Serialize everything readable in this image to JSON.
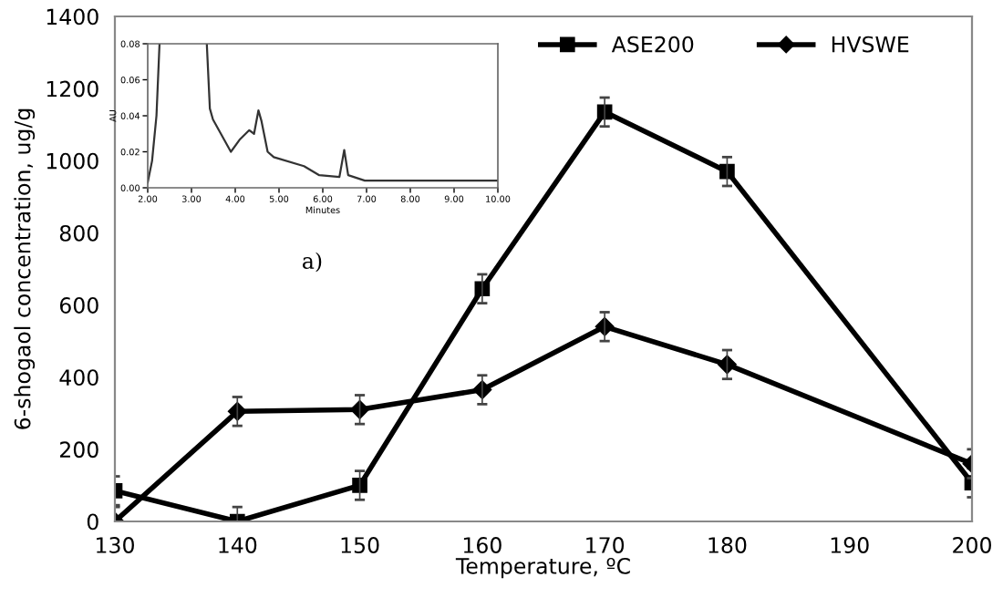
{
  "chart_data": [
    {
      "type": "line",
      "xlabel": "Temperature, ºC",
      "ylabel": "6-shogaol concentration, ug/g",
      "xlim": [
        130,
        200
      ],
      "xticks": [
        130,
        140,
        150,
        160,
        170,
        180,
        190,
        200
      ],
      "ylim": [
        0,
        1400
      ],
      "yticks": [
        0,
        200,
        400,
        600,
        800,
        1000,
        1200,
        1400
      ],
      "grid": false,
      "legend": "top right",
      "line_style": "solid",
      "series": [
        {
          "name": "ASE200",
          "color": "#000000",
          "marker": "square",
          "x": [
            130,
            140,
            150,
            160,
            170,
            180,
            200
          ],
          "values": [
            85,
            0,
            100,
            645,
            1135,
            970,
            107
          ],
          "errors": [
            40,
            40,
            40,
            40,
            40,
            40,
            40
          ]
        },
        {
          "name": "HVSWE",
          "color": "#000000",
          "marker": "diamond",
          "x": [
            130,
            140,
            150,
            160,
            170,
            180,
            200
          ],
          "values": [
            0,
            305,
            310,
            365,
            540,
            435,
            160
          ],
          "errors": [
            40,
            40,
            40,
            40,
            40,
            40,
            40
          ]
        }
      ]
    },
    {
      "type": "line",
      "xlabel": "Minutes",
      "ylabel": "AU",
      "annotations": [
        "a)"
      ],
      "xlim": [
        2,
        10
      ],
      "xticks": [
        {
          "value": 2,
          "label": "2.00"
        },
        {
          "value": 3,
          "label": "3.00"
        },
        {
          "value": 4,
          "label": "4.00"
        },
        {
          "value": 5,
          "label": "5.00"
        },
        {
          "value": 6,
          "label": "6.00"
        },
        {
          "value": 7,
          "label": "7.00"
        },
        {
          "value": 8,
          "label": "8.00"
        },
        {
          "value": 9,
          "label": "9.00"
        },
        {
          "value": 10,
          "label": "10.00"
        }
      ],
      "ylim": [
        0,
        0.08
      ],
      "yticks": [
        {
          "value": 0,
          "label": "0.00"
        },
        {
          "value": 0.02,
          "label": "0.02"
        },
        {
          "value": 0.04,
          "label": "0.04"
        },
        {
          "value": 0.06,
          "label": "0.06"
        },
        {
          "value": 0.08,
          "label": "0.08"
        }
      ],
      "grid": false,
      "legend": false,
      "marker": "none",
      "series": [
        {
          "color": "#333333",
          "x": [
            2.0,
            2.1,
            2.2,
            2.27,
            2.8,
            3.35,
            3.42,
            3.49,
            3.9,
            4.11,
            4.32,
            4.43,
            4.53,
            4.6,
            4.74,
            4.88,
            5.57,
            5.92,
            6.38,
            6.49,
            6.58,
            6.96,
            10.0
          ],
          "values": [
            0.003,
            0.015,
            0.04,
            0.08,
            null,
            0.08,
            0.044,
            0.038,
            0.02,
            0.027,
            0.032,
            0.03,
            0.043,
            0.037,
            0.02,
            0.017,
            0.012,
            0.007,
            0.006,
            0.021,
            0.007,
            0.004,
            0.004
          ]
        }
      ]
    }
  ]
}
